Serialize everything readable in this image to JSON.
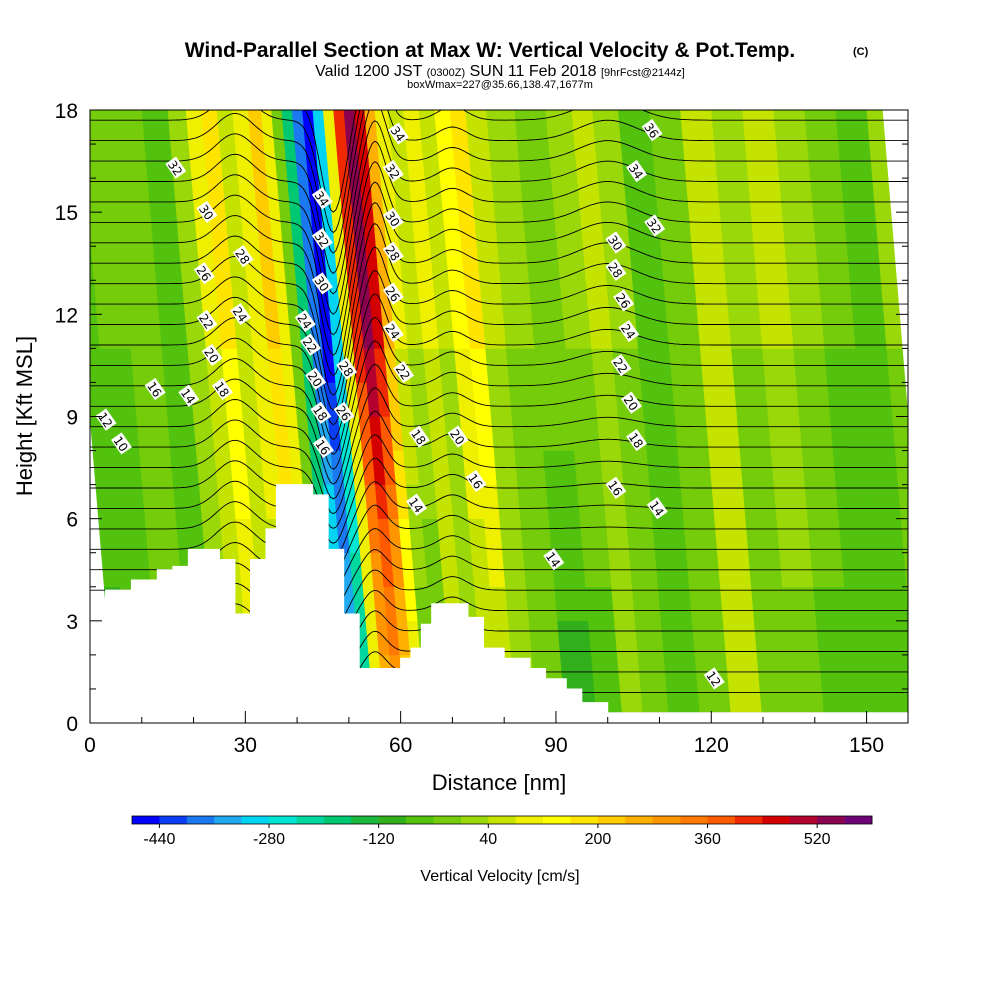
{
  "header": {
    "title": "Wind-Parallel Section at Max W: Vertical Velocity & Pot.Temp.",
    "title_mark": "(C)",
    "valid_prefix": "Valid 1200 JST",
    "valid_zulu": "(0300Z)",
    "valid_date": "SUN 11 Feb 2018",
    "valid_fcst": "[9hrFcst@2144z]",
    "box_info": "boxWmax=227@35.66,138.47,1677m"
  },
  "chart_data": {
    "type": "heatmap",
    "xlabel": "Distance [nm]",
    "ylabel": "Height [Kft MSL]",
    "xlim": [
      0,
      158
    ],
    "ylim": [
      0,
      18
    ],
    "x_ticks": [
      0,
      30,
      60,
      90,
      120,
      150
    ],
    "y_ticks": [
      0,
      3,
      6,
      9,
      12,
      15,
      18
    ],
    "grid": false,
    "colorbar": {
      "label": "Vertical Velocity [cm/s]",
      "tick_labels": [
        "-440",
        "-280",
        "-120",
        "40",
        "200",
        "360",
        "520"
      ],
      "tick_values": [
        -440,
        -280,
        -120,
        40,
        200,
        360,
        520
      ],
      "min": -480,
      "max": 600,
      "step": 40,
      "colors": [
        "#0000ff",
        "#0a3ef5",
        "#1a78f0",
        "#20a8f0",
        "#00d4f0",
        "#00e6d2",
        "#00d8a0",
        "#00c872",
        "#1ab83c",
        "#32b01c",
        "#52c20e",
        "#74cc0a",
        "#9ad80a",
        "#c4e400",
        "#eef000",
        "#ffff00",
        "#ffe400",
        "#ffcc00",
        "#ffb000",
        "#ff9600",
        "#ff7800",
        "#ff5a00",
        "#f02a00",
        "#d40000",
        "#b4002e",
        "#8c0050",
        "#6e0078"
      ]
    },
    "terrain_profile": {
      "distance": [
        0,
        3,
        3,
        8,
        8,
        13,
        13,
        16,
        16,
        19,
        19,
        22,
        22,
        25,
        25,
        27,
        27,
        28,
        28,
        31,
        31,
        34,
        34,
        36,
        36,
        40,
        40,
        43,
        43,
        45,
        45,
        46,
        46,
        49,
        49,
        52,
        52,
        53,
        53,
        60,
        60,
        61,
        61,
        62,
        62,
        64,
        64,
        66,
        66,
        69,
        69,
        73,
        73,
        74,
        74,
        76,
        76,
        80,
        80,
        85,
        85,
        88,
        88,
        92,
        92,
        95,
        95,
        100,
        100,
        104,
        104,
        158
      ],
      "height": [
        3.6,
        3.6,
        3.9,
        3.9,
        4.2,
        4.2,
        4.5,
        4.5,
        4.6,
        4.6,
        5.1,
        5.1,
        5.1,
        5.1,
        4.8,
        4.8,
        4.8,
        4.8,
        3.2,
        3.2,
        4.8,
        4.8,
        5.7,
        5.7,
        7.0,
        7.0,
        7.0,
        7.0,
        6.7,
        6.7,
        6.7,
        6.7,
        5.1,
        5.1,
        3.2,
        3.2,
        1.6,
        1.6,
        1.6,
        1.6,
        1.9,
        1.9,
        1.9,
        1.9,
        2.2,
        2.2,
        2.9,
        2.9,
        3.5,
        3.5,
        3.5,
        3.5,
        3.1,
        3.1,
        3.1,
        3.1,
        2.2,
        2.2,
        1.9,
        1.9,
        1.6,
        1.6,
        1.3,
        1.3,
        1.0,
        1.0,
        0.6,
        0.6,
        0.3,
        0.3,
        0.3,
        0.3
      ]
    },
    "vertical_velocity_field": [
      {
        "x": 0,
        "w": -60,
        "w_low": -90
      },
      {
        "x": 6,
        "w": -40,
        "w_low": -60
      },
      {
        "x": 12,
        "w": -20,
        "w_low": -40
      },
      {
        "x": 18,
        "w": -60,
        "w_low": -50
      },
      {
        "x": 22,
        "w": 20,
        "w_low": 0
      },
      {
        "x": 25,
        "w": 80,
        "w_low": 40
      },
      {
        "x": 28,
        "w": 160,
        "w_low": 80
      },
      {
        "x": 31,
        "w": 60,
        "w_low": 40
      },
      {
        "x": 34,
        "w": 100,
        "w_low": 60
      },
      {
        "x": 37,
        "w": 200,
        "w_low": 80
      },
      {
        "x": 39,
        "w": 100,
        "w_low": 40
      },
      {
        "x": 41,
        "w": -40,
        "w_low": -40
      },
      {
        "x": 43,
        "w": -200,
        "w_low": -120
      },
      {
        "x": 45,
        "w": -400,
        "w_low": -200
      },
      {
        "x": 47,
        "w": -460,
        "w_low": -280
      },
      {
        "x": 49,
        "w": -300,
        "w_low": -200
      },
      {
        "x": 51,
        "w": 100,
        "w_low": 80
      },
      {
        "x": 53,
        "w": 420,
        "w_low": 240
      },
      {
        "x": 55,
        "w": 520,
        "w_low": 280
      },
      {
        "x": 57,
        "w": 440,
        "w_low": 200
      },
      {
        "x": 59,
        "w": 240,
        "w_low": 80
      },
      {
        "x": 61,
        "w": 80,
        "w_low": -40
      },
      {
        "x": 64,
        "w": 40,
        "w_low": -40
      },
      {
        "x": 67,
        "w": 80,
        "w_low": 40
      },
      {
        "x": 70,
        "w": 40,
        "w_low": 20
      },
      {
        "x": 73,
        "w": 120,
        "w_low": 40
      },
      {
        "x": 76,
        "w": 160,
        "w_low": 40
      },
      {
        "x": 79,
        "w": 40,
        "w_low": 0
      },
      {
        "x": 84,
        "w": 0,
        "w_low": -40
      },
      {
        "x": 90,
        "w": -20,
        "w_low": -100
      },
      {
        "x": 96,
        "w": 0,
        "w_low": -60
      },
      {
        "x": 100,
        "w": 40,
        "w_low": 0
      },
      {
        "x": 104,
        "w": 0,
        "w_low": -40
      },
      {
        "x": 110,
        "w": -60,
        "w_low": -60
      },
      {
        "x": 116,
        "w": -20,
        "w_low": 0
      },
      {
        "x": 122,
        "w": 40,
        "w_low": 40
      },
      {
        "x": 128,
        "w": 0,
        "w_low": -40
      },
      {
        "x": 134,
        "w": 40,
        "w_low": -20
      },
      {
        "x": 140,
        "w": 0,
        "w_low": -60
      },
      {
        "x": 146,
        "w": -40,
        "w_low": -60
      },
      {
        "x": 152,
        "w": -60,
        "w_low": -40
      },
      {
        "x": 158,
        "w": 0,
        "w_low": -40
      }
    ],
    "potential_temperature_labels": [
      {
        "text": "32",
        "x": 16.5,
        "y": 16.3
      },
      {
        "text": "30",
        "x": 22.5,
        "y": 15.0
      },
      {
        "text": "28",
        "x": 29.5,
        "y": 13.7
      },
      {
        "text": "26",
        "x": 22.0,
        "y": 13.2
      },
      {
        "text": "24",
        "x": 29.0,
        "y": 12.0
      },
      {
        "text": "22",
        "x": 22.5,
        "y": 11.8
      },
      {
        "text": "20",
        "x": 23.5,
        "y": 10.8
      },
      {
        "text": "18",
        "x": 25.5,
        "y": 9.8
      },
      {
        "text": "16",
        "x": 12.5,
        "y": 9.8
      },
      {
        "text": "14",
        "x": 19.0,
        "y": 9.6
      },
      {
        "text": "12",
        "x": 3.0,
        "y": 8.9
      },
      {
        "text": "10",
        "x": 6.0,
        "y": 8.2
      },
      {
        "text": "34",
        "x": 44.8,
        "y": 15.4
      },
      {
        "text": "32",
        "x": 44.8,
        "y": 14.2
      },
      {
        "text": "30",
        "x": 44.8,
        "y": 12.9
      },
      {
        "text": "24",
        "x": 41.5,
        "y": 11.8
      },
      {
        "text": "22",
        "x": 42.5,
        "y": 11.1
      },
      {
        "text": "20",
        "x": 43.5,
        "y": 10.1
      },
      {
        "text": "18",
        "x": 44.5,
        "y": 9.1
      },
      {
        "text": "16",
        "x": 45.0,
        "y": 8.1
      },
      {
        "text": "28",
        "x": 49.5,
        "y": 10.4
      },
      {
        "text": "26",
        "x": 49.0,
        "y": 9.1
      },
      {
        "text": "34",
        "x": 59.5,
        "y": 17.3
      },
      {
        "text": "32",
        "x": 58.5,
        "y": 16.2
      },
      {
        "text": "30",
        "x": 58.5,
        "y": 14.8
      },
      {
        "text": "28",
        "x": 58.5,
        "y": 13.8
      },
      {
        "text": "26",
        "x": 58.5,
        "y": 12.6
      },
      {
        "text": "24",
        "x": 58.5,
        "y": 11.5
      },
      {
        "text": "22",
        "x": 60.5,
        "y": 10.3
      },
      {
        "text": "18",
        "x": 63.5,
        "y": 8.4
      },
      {
        "text": "20",
        "x": 71.0,
        "y": 8.4
      },
      {
        "text": "16",
        "x": 74.5,
        "y": 7.1
      },
      {
        "text": "14",
        "x": 63.0,
        "y": 6.4
      },
      {
        "text": "14",
        "x": 89.5,
        "y": 4.8
      },
      {
        "text": "36",
        "x": 108.5,
        "y": 17.4
      },
      {
        "text": "34",
        "x": 105.5,
        "y": 16.2
      },
      {
        "text": "32",
        "x": 109.0,
        "y": 14.6
      },
      {
        "text": "30",
        "x": 101.5,
        "y": 14.1
      },
      {
        "text": "28",
        "x": 101.5,
        "y": 13.3
      },
      {
        "text": "26",
        "x": 103.0,
        "y": 12.4
      },
      {
        "text": "24",
        "x": 104.0,
        "y": 11.5
      },
      {
        "text": "22",
        "x": 102.5,
        "y": 10.5
      },
      {
        "text": "20",
        "x": 104.5,
        "y": 9.4
      },
      {
        "text": "18",
        "x": 105.5,
        "y": 8.3
      },
      {
        "text": "16",
        "x": 101.5,
        "y": 6.9
      },
      {
        "text": "14",
        "x": 109.5,
        "y": 6.3
      },
      {
        "text": "12",
        "x": 120.5,
        "y": 1.3
      }
    ]
  }
}
